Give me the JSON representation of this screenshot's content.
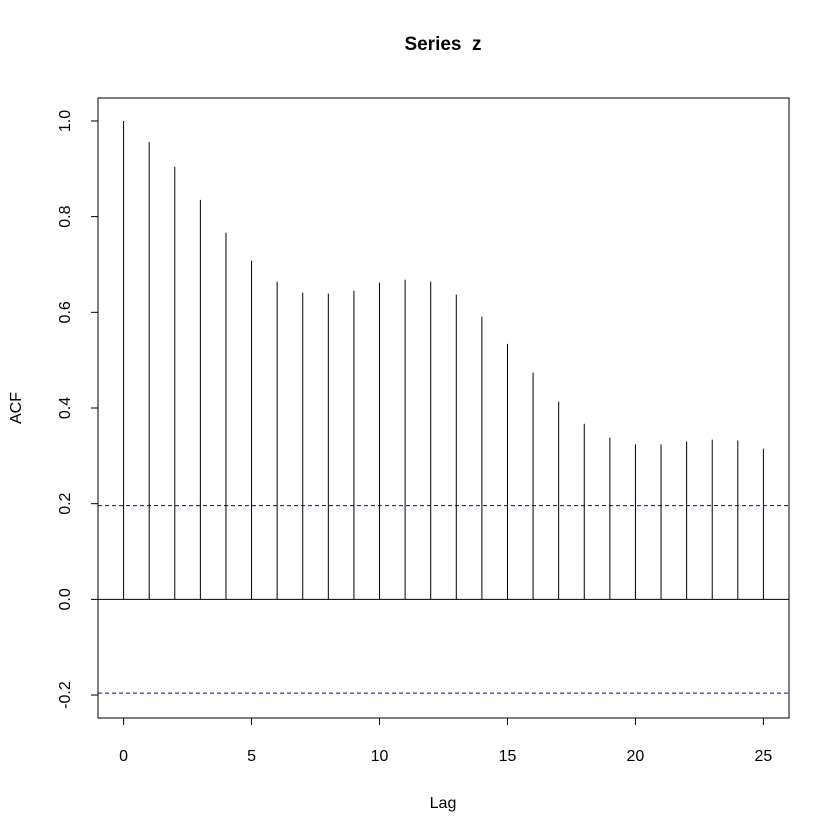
{
  "chart_data": {
    "type": "stem",
    "title": "Series  z",
    "x_label": "Lag",
    "y_label": "ACF",
    "x": [
      0,
      1,
      2,
      3,
      4,
      5,
      6,
      7,
      8,
      9,
      10,
      11,
      12,
      13,
      14,
      15,
      16,
      17,
      18,
      19,
      20,
      21,
      22,
      23,
      24,
      25
    ],
    "values": [
      1.0,
      0.956,
      0.904,
      0.835,
      0.766,
      0.708,
      0.664,
      0.641,
      0.639,
      0.645,
      0.662,
      0.668,
      0.664,
      0.637,
      0.591,
      0.534,
      0.474,
      0.413,
      0.367,
      0.338,
      0.324,
      0.324,
      0.33,
      0.334,
      0.332,
      0.315
    ],
    "color": "#000000",
    "ci_lines": [
      0.196,
      -0.196
    ],
    "ci_color": "#0000cc",
    "xlim": [
      -1,
      26
    ],
    "ylim": [
      -0.248,
      1.048
    ],
    "xticks": [
      0,
      5,
      10,
      15,
      20,
      25
    ],
    "yticks": [
      -0.2,
      {
        "value": 0,
        "label": "0.0"
      },
      0.2,
      0.4,
      0.6,
      0.8,
      {
        "value": 1,
        "label": "1.0"
      }
    ]
  }
}
